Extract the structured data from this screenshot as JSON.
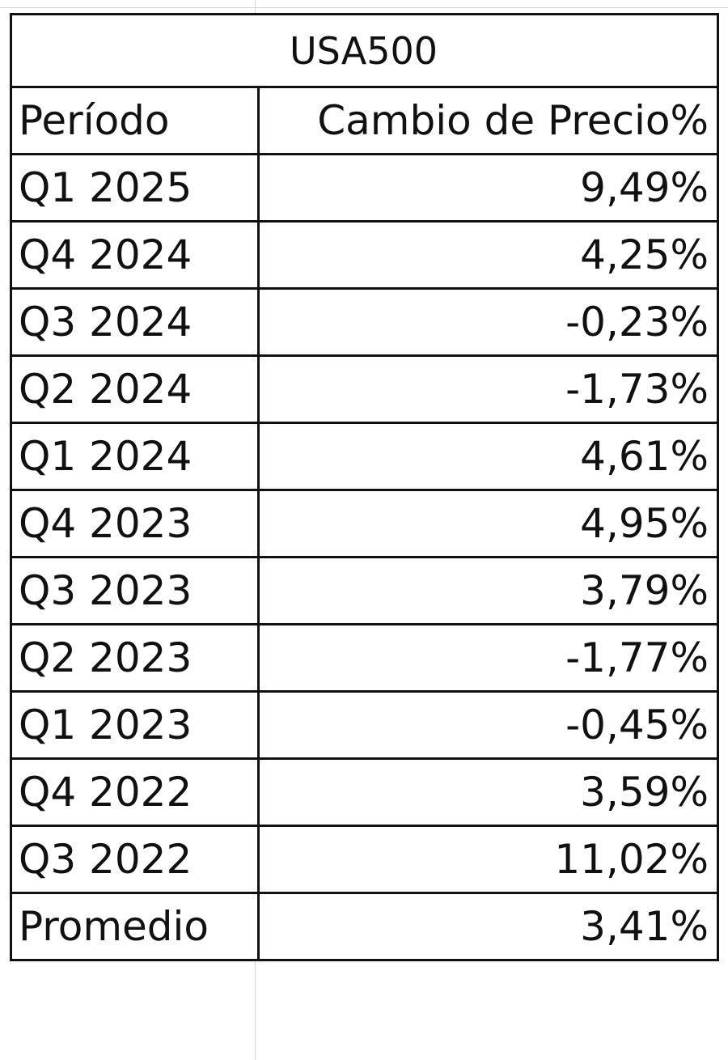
{
  "table": {
    "title": "USA500",
    "headers": [
      "Período",
      "Cambio de Precio%"
    ],
    "rows": [
      {
        "period": "Q1 2025",
        "change": "9,49%"
      },
      {
        "period": "Q4 2024",
        "change": "4,25%"
      },
      {
        "period": "Q3 2024",
        "change": "-0,23%"
      },
      {
        "period": "Q2 2024",
        "change": "-1,73%"
      },
      {
        "period": "Q1 2024",
        "change": "4,61%"
      },
      {
        "period": "Q4 2023",
        "change": "4,95%"
      },
      {
        "period": "Q3 2023",
        "change": "3,79%"
      },
      {
        "period": "Q2 2023",
        "change": "-1,77%"
      },
      {
        "period": "Q1 2023",
        "change": "-0,45%"
      },
      {
        "period": "Q4 2022",
        "change": "3,59%"
      },
      {
        "period": "Q3 2022",
        "change": "11,02%"
      }
    ],
    "summary": {
      "label": "Promedio",
      "value": "3,41%"
    }
  },
  "chart_data": {
    "type": "table",
    "title": "USA500",
    "columns": [
      "Período",
      "Cambio de Precio%"
    ],
    "rows": [
      [
        "Q1 2025",
        9.49
      ],
      [
        "Q4 2024",
        4.25
      ],
      [
        "Q3 2024",
        -0.23
      ],
      [
        "Q2 2024",
        -1.73
      ],
      [
        "Q1 2024",
        4.61
      ],
      [
        "Q4 2023",
        4.95
      ],
      [
        "Q3 2023",
        3.79
      ],
      [
        "Q2 2023",
        -1.77
      ],
      [
        "Q1 2023",
        -0.45
      ],
      [
        "Q4 2022",
        3.59
      ],
      [
        "Q3 2022",
        11.02
      ]
    ],
    "summary": [
      "Promedio",
      3.41
    ]
  }
}
